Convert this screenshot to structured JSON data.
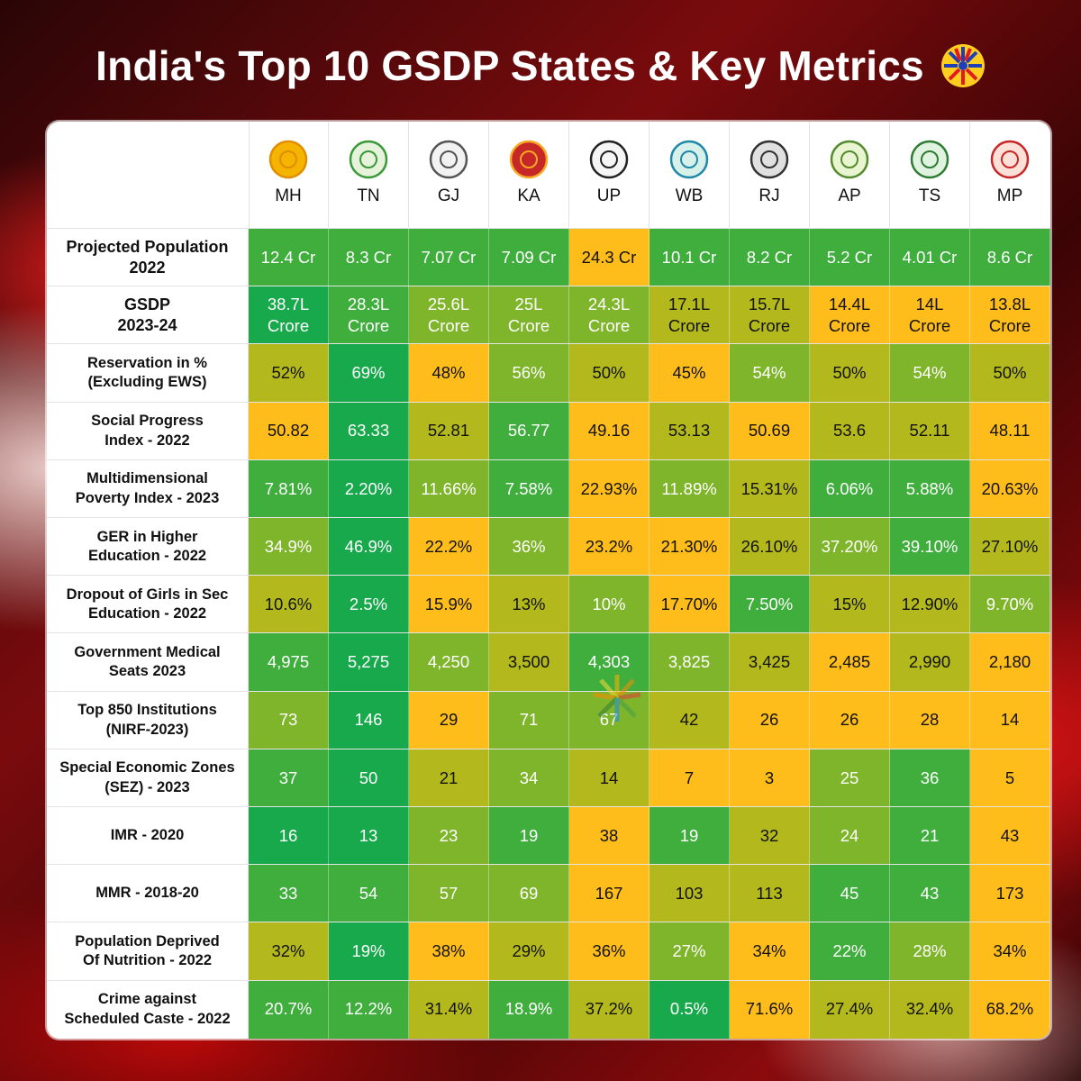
{
  "title": "India's Top 10 GSDP States & Key Metrics",
  "colors": {
    "dark_green": "#17a94b",
    "green": "#3fae3d",
    "lime": "#7fb52a",
    "olive": "#b3b91c",
    "yellow": "#ffbd1c",
    "orange": "#f7b019"
  },
  "chart_data": {
    "type": "table",
    "title": "India's Top 10 GSDP States & Key Metrics",
    "columns": [
      "MH",
      "TN",
      "GJ",
      "KA",
      "UP",
      "WB",
      "RJ",
      "AP",
      "TS",
      "MP"
    ],
    "rows": [
      {
        "label_lines": [
          "Projected Population",
          "2022"
        ],
        "large": true,
        "values": [
          "12.4 Cr",
          "8.3 Cr",
          "7.07 Cr",
          "7.09 Cr",
          "24.3 Cr",
          "10.1 Cr",
          "8.2 Cr",
          "5.2 Cr",
          "4.01 Cr",
          "8.6 Cr"
        ],
        "colors": [
          "green",
          "green",
          "green",
          "green",
          "yellow",
          "green",
          "green",
          "green",
          "green",
          "green"
        ]
      },
      {
        "label_lines": [
          "GSDP",
          "2023-24"
        ],
        "large": true,
        "values": [
          [
            "38.7L",
            "Crore"
          ],
          [
            "28.3L",
            "Crore"
          ],
          [
            "25.6L",
            "Crore"
          ],
          [
            "25L",
            "Crore"
          ],
          [
            "24.3L",
            "Crore"
          ],
          [
            "17.1L",
            "Crore"
          ],
          [
            "15.7L",
            "Crore"
          ],
          [
            "14.4L",
            "Crore"
          ],
          [
            "14L",
            "Crore"
          ],
          [
            "13.8L",
            "Crore"
          ]
        ],
        "colors": [
          "dark_green",
          "green",
          "lime",
          "lime",
          "lime",
          "olive",
          "olive",
          "yellow",
          "yellow",
          "yellow"
        ]
      },
      {
        "label_lines": [
          "Reservation in %",
          "(Excluding EWS)"
        ],
        "values": [
          "52%",
          "69%",
          "48%",
          "56%",
          "50%",
          "45%",
          "54%",
          "50%",
          "54%",
          "50%"
        ],
        "colors": [
          "olive",
          "dark_green",
          "yellow",
          "lime",
          "olive",
          "yellow",
          "lime",
          "olive",
          "lime",
          "olive"
        ]
      },
      {
        "label_lines": [
          "Social Progress",
          "Index - 2022"
        ],
        "values": [
          "50.82",
          "63.33",
          "52.81",
          "56.77",
          "49.16",
          "53.13",
          "50.69",
          "53.6",
          "52.11",
          "48.11"
        ],
        "colors": [
          "yellow",
          "dark_green",
          "olive",
          "green",
          "yellow",
          "olive",
          "yellow",
          "olive",
          "olive",
          "yellow"
        ]
      },
      {
        "label_lines": [
          "Multidimensional",
          "Poverty Index - 2023"
        ],
        "values": [
          "7.81%",
          "2.20%",
          "11.66%",
          "7.58%",
          "22.93%",
          "11.89%",
          "15.31%",
          "6.06%",
          "5.88%",
          "20.63%"
        ],
        "colors": [
          "green",
          "dark_green",
          "lime",
          "green",
          "yellow",
          "lime",
          "olive",
          "green",
          "green",
          "yellow"
        ]
      },
      {
        "label_lines": [
          "GER in Higher",
          "Education - 2022"
        ],
        "values": [
          "34.9%",
          "46.9%",
          "22.2%",
          "36%",
          "23.2%",
          "21.30%",
          "26.10%",
          "37.20%",
          "39.10%",
          "27.10%"
        ],
        "colors": [
          "lime",
          "dark_green",
          "yellow",
          "lime",
          "yellow",
          "yellow",
          "olive",
          "lime",
          "green",
          "olive"
        ]
      },
      {
        "label_lines": [
          "Dropout of Girls in Sec",
          "Education - 2022"
        ],
        "values": [
          "10.6%",
          "2.5%",
          "15.9%",
          "13%",
          "10%",
          "17.70%",
          "7.50%",
          "15%",
          "12.90%",
          "9.70%"
        ],
        "colors": [
          "olive",
          "dark_green",
          "yellow",
          "olive",
          "lime",
          "yellow",
          "green",
          "olive",
          "olive",
          "lime"
        ]
      },
      {
        "label_lines": [
          "Government Medical",
          "Seats 2023"
        ],
        "values": [
          "4,975",
          "5,275",
          "4,250",
          "3,500",
          "4,303",
          "3,825",
          "3,425",
          "2,485",
          "2,990",
          "2,180"
        ],
        "colors": [
          "green",
          "dark_green",
          "lime",
          "olive",
          "green",
          "lime",
          "olive",
          "yellow",
          "olive",
          "yellow"
        ]
      },
      {
        "label_lines": [
          "Top 850 Institutions",
          "(NIRF-2023)"
        ],
        "values": [
          "73",
          "146",
          "29",
          "71",
          "67",
          "42",
          "26",
          "26",
          "28",
          "14"
        ],
        "colors": [
          "lime",
          "dark_green",
          "yellow",
          "lime",
          "lime",
          "olive",
          "yellow",
          "yellow",
          "yellow",
          "yellow"
        ]
      },
      {
        "label_lines": [
          "Special Economic Zones",
          "(SEZ) - 2023"
        ],
        "values": [
          "37",
          "50",
          "21",
          "34",
          "14",
          "7",
          "3",
          "25",
          "36",
          "5"
        ],
        "colors": [
          "green",
          "dark_green",
          "olive",
          "lime",
          "olive",
          "yellow",
          "yellow",
          "lime",
          "green",
          "yellow"
        ]
      },
      {
        "label_lines": [
          "IMR - 2020"
        ],
        "values": [
          "16",
          "13",
          "23",
          "19",
          "38",
          "19",
          "32",
          "24",
          "21",
          "43"
        ],
        "colors": [
          "dark_green",
          "dark_green",
          "lime",
          "green",
          "yellow",
          "green",
          "olive",
          "lime",
          "green",
          "yellow"
        ]
      },
      {
        "label_lines": [
          "MMR - 2018-20"
        ],
        "values": [
          "33",
          "54",
          "57",
          "69",
          "167",
          "103",
          "113",
          "45",
          "43",
          "173"
        ],
        "colors": [
          "green",
          "green",
          "lime",
          "lime",
          "yellow",
          "olive",
          "olive",
          "green",
          "green",
          "yellow"
        ]
      },
      {
        "label_lines": [
          "Population Deprived",
          "Of Nutrition - 2022"
        ],
        "values": [
          "32%",
          "19%",
          "38%",
          "29%",
          "36%",
          "27%",
          "34%",
          "22%",
          "28%",
          "34%"
        ],
        "colors": [
          "olive",
          "dark_green",
          "yellow",
          "olive",
          "yellow",
          "lime",
          "yellow",
          "green",
          "lime",
          "yellow"
        ]
      },
      {
        "label_lines": [
          "Crime against",
          "Scheduled Caste - 2022"
        ],
        "values": [
          "20.7%",
          "12.2%",
          "31.4%",
          "18.9%",
          "37.2%",
          "0.5%",
          "71.6%",
          "27.4%",
          "32.4%",
          "68.2%"
        ],
        "colors": [
          "green",
          "green",
          "olive",
          "green",
          "olive",
          "dark_green",
          "yellow",
          "olive",
          "olive",
          "yellow"
        ]
      }
    ]
  }
}
